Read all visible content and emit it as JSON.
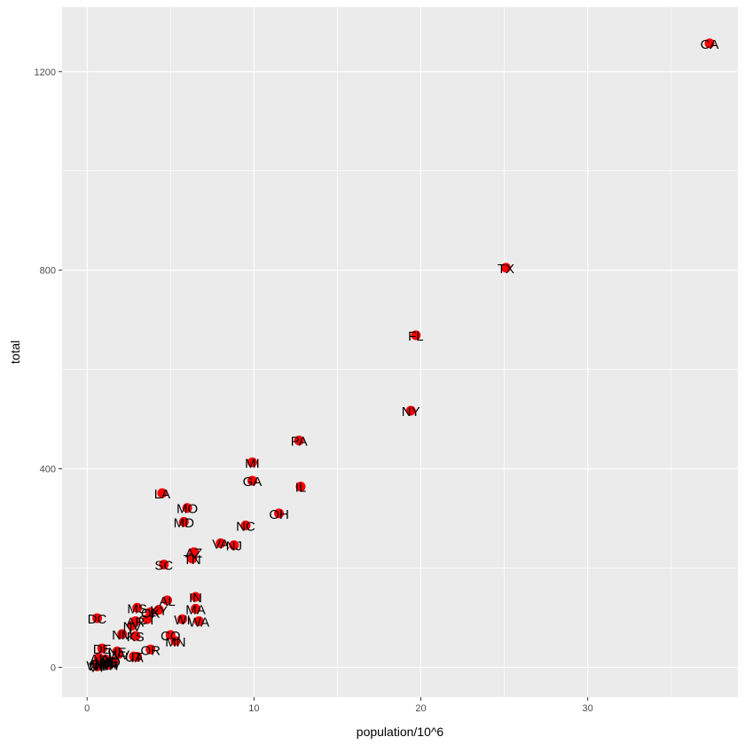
{
  "chart_data": {
    "type": "scatter",
    "title": "",
    "xlabel": "population/10^6",
    "ylabel": "total",
    "xlim": [
      -1.5,
      39
    ],
    "ylim": [
      -60,
      1330
    ],
    "x_ticks": [
      0,
      10,
      20,
      30
    ],
    "y_ticks": [
      0,
      400,
      800,
      1200
    ],
    "x_tick_labels": [
      "0",
      "10",
      "20",
      "30"
    ],
    "y_tick_labels": [
      "0",
      "400",
      "800",
      "1200"
    ],
    "grid": true,
    "background": "#ebebeb",
    "grid_color": "#ffffff",
    "point_color": "#ff0000",
    "label_color": "#000000",
    "points": [
      {
        "label": "CA",
        "x": 37.3,
        "y": 1257
      },
      {
        "label": "TX",
        "x": 25.1,
        "y": 805
      },
      {
        "label": "FL",
        "x": 19.7,
        "y": 669
      },
      {
        "label": "NY",
        "x": 19.4,
        "y": 517
      },
      {
        "label": "PA",
        "x": 12.7,
        "y": 457
      },
      {
        "label": "MI",
        "x": 9.9,
        "y": 413
      },
      {
        "label": "GA",
        "x": 9.9,
        "y": 376
      },
      {
        "label": "IL",
        "x": 12.8,
        "y": 364
      },
      {
        "label": "LA",
        "x": 4.5,
        "y": 351
      },
      {
        "label": "MO",
        "x": 6.0,
        "y": 321
      },
      {
        "label": "OH",
        "x": 11.5,
        "y": 310
      },
      {
        "label": "MD",
        "x": 5.8,
        "y": 293
      },
      {
        "label": "NC",
        "x": 9.5,
        "y": 286
      },
      {
        "label": "VA",
        "x": 8.0,
        "y": 250
      },
      {
        "label": "NJ",
        "x": 8.8,
        "y": 246
      },
      {
        "label": "AZ",
        "x": 6.4,
        "y": 232
      },
      {
        "label": "TN",
        "x": 6.3,
        "y": 219
      },
      {
        "label": "SC",
        "x": 4.6,
        "y": 207
      },
      {
        "label": "IN",
        "x": 6.5,
        "y": 142
      },
      {
        "label": "AL",
        "x": 4.8,
        "y": 135
      },
      {
        "label": "MA",
        "x": 6.5,
        "y": 118
      },
      {
        "label": "MS",
        "x": 3.0,
        "y": 120
      },
      {
        "label": "KY",
        "x": 4.3,
        "y": 116
      },
      {
        "label": "OK",
        "x": 3.8,
        "y": 111
      },
      {
        "label": "WI",
        "x": 5.7,
        "y": 97
      },
      {
        "label": "WA",
        "x": 6.7,
        "y": 93
      },
      {
        "label": "DC",
        "x": 0.6,
        "y": 99
      },
      {
        "label": "AR",
        "x": 2.9,
        "y": 93
      },
      {
        "label": "CT",
        "x": 3.6,
        "y": 97
      },
      {
        "label": "NM",
        "x": 2.1,
        "y": 67
      },
      {
        "label": "NV",
        "x": 2.7,
        "y": 84
      },
      {
        "label": "KS",
        "x": 2.9,
        "y": 63
      },
      {
        "label": "CO",
        "x": 5.0,
        "y": 65
      },
      {
        "label": "MN",
        "x": 5.3,
        "y": 53
      },
      {
        "label": "OR",
        "x": 3.8,
        "y": 36
      },
      {
        "label": "DE",
        "x": 0.9,
        "y": 38
      },
      {
        "label": "NE",
        "x": 1.8,
        "y": 32
      },
      {
        "label": "UT",
        "x": 2.8,
        "y": 22
      },
      {
        "label": "IA",
        "x": 3.0,
        "y": 21
      },
      {
        "label": "HI",
        "x": 1.4,
        "y": 7
      },
      {
        "label": "RI",
        "x": 1.1,
        "y": 16
      },
      {
        "label": "WV",
        "x": 1.9,
        "y": 27
      },
      {
        "label": "AK",
        "x": 0.7,
        "y": 19
      },
      {
        "label": "ID",
        "x": 1.6,
        "y": 12
      },
      {
        "label": "ME",
        "x": 1.3,
        "y": 11
      },
      {
        "label": "MT",
        "x": 1.0,
        "y": 12
      },
      {
        "label": "NH",
        "x": 1.3,
        "y": 5
      },
      {
        "label": "ND",
        "x": 0.7,
        "y": 4
      },
      {
        "label": "SD",
        "x": 0.8,
        "y": 8
      },
      {
        "label": "WY",
        "x": 0.6,
        "y": 5
      },
      {
        "label": "VT",
        "x": 0.6,
        "y": 2
      }
    ]
  }
}
